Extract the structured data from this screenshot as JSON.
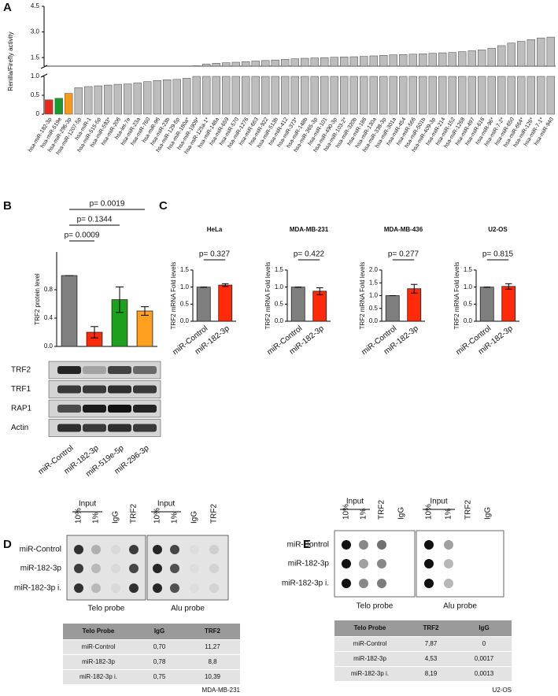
{
  "panel_labels": [
    "A",
    "B",
    "C",
    "D",
    "E"
  ],
  "chart_data": [
    {
      "type": "bar",
      "y_label": "Renilla/Firefly activity",
      "categories": [
        "hsa-miR-182-3p",
        "hsa-miR-519e",
        "hsa-miR-296-3p",
        "hsa-miR-1207-5p",
        "hsa-miR-1",
        "hsa-miR-515-5p",
        "hsa-miR-593*",
        "hsa-miR-206",
        "hsa-let-7e",
        "hsa-miR-23a",
        "hsa-miR-760",
        "hsa-miR-96",
        "hsa-miR-23b",
        "hsa-miR-129-5p",
        "hsa-miR-180a*",
        "hsa-miR-1909*",
        "hsa-miR-125a-1*",
        "hsa-miR-148a",
        "hsa-miR-659",
        "hsa-miR-570",
        "hsa-miR-1276",
        "hsa-miR-663",
        "hsa-miR-922",
        "hsa-miR-513b",
        "hsa-miR-412",
        "hsa-miR-373*",
        "hsa-miR-148b",
        "hsa-miR-365-3p",
        "hsa-miR-101",
        "hsa-miR-490-3p",
        "hsa-miR-103-2*",
        "hsa-miR-320b",
        "hsa-miR-186",
        "hsa-miR-130a",
        "hsa-miR-338-3p",
        "hsa-miR-301a",
        "hsa-miR-454",
        "hsa-miR-566",
        "hsa-miR-501b",
        "hsa-miR-409-3p",
        "hsa-miR-214",
        "hsa-miR-152",
        "hsa-miR-1268",
        "hsa-miR-497",
        "hsa-miR-616",
        "hsa-miR-96*",
        "hsa-miR-7-2*",
        "hsa-miR-650",
        "hsa-miR-664*",
        "hsa-miR-126*",
        "hsa-miR-7-1*",
        "hsa-miR-940"
      ],
      "values": [
        0.38,
        0.42,
        0.55,
        0.7,
        0.73,
        0.75,
        0.77,
        0.79,
        0.8,
        0.83,
        0.86,
        0.89,
        0.91,
        0.92,
        0.95,
        1.02,
        1.12,
        1.17,
        1.2,
        1.23,
        1.26,
        1.3,
        1.33,
        1.36,
        1.4,
        1.43,
        1.46,
        1.48,
        1.5,
        1.52,
        1.54,
        1.55,
        1.57,
        1.6,
        1.63,
        1.66,
        1.68,
        1.7,
        1.72,
        1.75,
        1.78,
        1.8,
        1.85,
        1.9,
        1.95,
        2.05,
        2.2,
        2.35,
        2.45,
        2.55,
        2.65,
        2.7
      ],
      "colors": [
        "#e8291c",
        "#1a9a2a",
        "#f59a1a",
        "#bdbdbd",
        "#bdbdbd",
        "#bdbdbd",
        "#bdbdbd",
        "#bdbdbd",
        "#bdbdbd",
        "#bdbdbd",
        "#bdbdbd",
        "#bdbdbd",
        "#bdbdbd",
        "#bdbdbd",
        "#bdbdbd",
        "#bdbdbd",
        "#bdbdbd",
        "#bdbdbd",
        "#bdbdbd",
        "#bdbdbd",
        "#bdbdbd",
        "#bdbdbd",
        "#bdbdbd",
        "#bdbdbd",
        "#bdbdbd",
        "#bdbdbd",
        "#bdbdbd",
        "#bdbdbd",
        "#bdbdbd",
        "#bdbdbd",
        "#bdbdbd",
        "#bdbdbd",
        "#bdbdbd",
        "#bdbdbd",
        "#bdbdbd",
        "#bdbdbd",
        "#bdbdbd",
        "#bdbdbd",
        "#bdbdbd",
        "#bdbdbd",
        "#bdbdbd",
        "#bdbdbd",
        "#bdbdbd",
        "#bdbdbd",
        "#bdbdbd",
        "#bdbdbd",
        "#bdbdbd",
        "#bdbdbd",
        "#bdbdbd",
        "#bdbdbd",
        "#bdbdbd",
        "#bdbdbd"
      ],
      "ylim": [
        0,
        4.5
      ],
      "y_break": 1,
      "yticks": [
        0,
        0.5,
        {
          "value": 1,
          "label": "1.0"
        },
        1.5,
        {
          "value": 3,
          "label": "3.0"
        },
        4.5
      ]
    },
    {
      "type": "bar",
      "y_label": "TRF2 protein level",
      "categories": [
        "miR-Control",
        "miR-182-3p",
        "miR-519e-5p",
        "miR-296-3p"
      ],
      "values": [
        1.0,
        0.2,
        0.66,
        0.5
      ],
      "errors": [
        0,
        0.08,
        0.18,
        0.06
      ],
      "colors": [
        "#808080",
        "#ff2a0a",
        "#1ea01e",
        "#ffa020"
      ],
      "ylim": [
        0,
        1.2
      ],
      "yticks": [
        {
          "value": 0,
          "label": "0.0"
        },
        {
          "value": 0.4,
          "label": "0.4"
        },
        {
          "value": 0.8,
          "label": "0.8"
        }
      ],
      "annotations": [
        "p= 0.0009",
        "p= 0.1344",
        "p= 0.0019"
      ]
    },
    {
      "type": "bar",
      "title": "HeLa",
      "y_label": "TRF2 mRNA Fold levels",
      "categories": [
        "miR-Control",
        "miR-182-3p"
      ],
      "values": [
        1.0,
        1.06
      ],
      "errors": [
        0,
        0.04
      ],
      "colors": [
        "#7f7f7f",
        "#ff2a0a"
      ],
      "ylim": [
        0,
        1.5
      ],
      "yticks": [
        {
          "value": 0,
          "label": "0.0"
        },
        0.5,
        {
          "value": 1,
          "label": "1.0"
        },
        1.5
      ],
      "annotations": [
        "p= 0.327"
      ]
    },
    {
      "type": "bar",
      "title": "MDA-MB-231",
      "y_label": "TRF2 mRNA Fold levels",
      "categories": [
        "miR-Control",
        "miR-182-3p"
      ],
      "values": [
        1.0,
        0.88
      ],
      "errors": [
        0,
        0.1
      ],
      "colors": [
        "#7f7f7f",
        "#ff2a0a"
      ],
      "ylim": [
        0,
        1.5
      ],
      "yticks": [
        {
          "value": 0,
          "label": "0.0"
        },
        0.5,
        {
          "value": 1,
          "label": "1.0"
        },
        1.5
      ],
      "annotations": [
        "p= 0.422"
      ]
    },
    {
      "type": "bar",
      "title": "MDA-MB-436",
      "y_label": "TRF2 mRNA Fold levels",
      "categories": [
        "miR-Control",
        "miR-182-3p"
      ],
      "values": [
        1.0,
        1.27
      ],
      "errors": [
        0,
        0.17
      ],
      "colors": [
        "#7f7f7f",
        "#ff2a0a"
      ],
      "ylim": [
        0,
        2.0
      ],
      "yticks": [
        {
          "value": 0,
          "label": "0.0"
        },
        0.5,
        {
          "value": 1,
          "label": "1.0"
        },
        1.5,
        {
          "value": 2,
          "label": "2.0"
        }
      ],
      "annotations": [
        "p= 0.277"
      ]
    },
    {
      "type": "bar",
      "title": "U2-OS",
      "y_label": "TRF2 mRNA Fold levels",
      "categories": [
        "miR-Control",
        "miR-182-3p"
      ],
      "values": [
        1.0,
        1.02
      ],
      "errors": [
        0,
        0.08
      ],
      "colors": [
        "#7f7f7f",
        "#ff2a0a"
      ],
      "ylim": [
        0,
        1.5
      ],
      "yticks": [
        {
          "value": 0,
          "label": "0.0"
        },
        0.5,
        {
          "value": 1,
          "label": "1.0"
        },
        1.5
      ],
      "annotations": [
        "p= 0.815"
      ]
    }
  ],
  "western_blot": {
    "rows": [
      "TRF2",
      "TRF1",
      "RAP1",
      "Actin"
    ]
  },
  "dot_blots": [
    {
      "input_label": "Input",
      "columns": [
        "10%",
        "1%",
        "IgG",
        "TRF2"
      ],
      "rows": [
        "miR-Control",
        "miR-182-3p",
        "miR-182-3p i."
      ],
      "probes": [
        "Telo probe",
        "Alu probe"
      ],
      "table": {
        "header": [
          "Telo Probe",
          "IgG",
          "TRF2"
        ],
        "rows": [
          [
            "miR-Control",
            "0,70",
            "11,27"
          ],
          [
            "miR-182-3p",
            "0,78",
            "8,8"
          ],
          [
            "miR-182-3p i.",
            "0,75",
            "10,39"
          ]
        ]
      },
      "cell_line": "MDA-MB-231"
    },
    {
      "input_label": "Input",
      "columns": [
        "10%",
        "1%",
        "TRF2",
        "IgG"
      ],
      "rows": [
        "miR-Control",
        "miR-182-3p",
        "miR-182-3p i."
      ],
      "probes": [
        "Telo probe",
        "Alu probe"
      ],
      "table": {
        "header": [
          "Telo Probe",
          "TRF2",
          "IgG"
        ],
        "rows": [
          [
            "miR-Control",
            "7,87",
            "0"
          ],
          [
            "miR-182-3p",
            "4,53",
            "0,0017"
          ],
          [
            "miR-182-3p i.",
            "8,19",
            "0,0013"
          ]
        ]
      },
      "cell_line": "U2-OS"
    }
  ]
}
